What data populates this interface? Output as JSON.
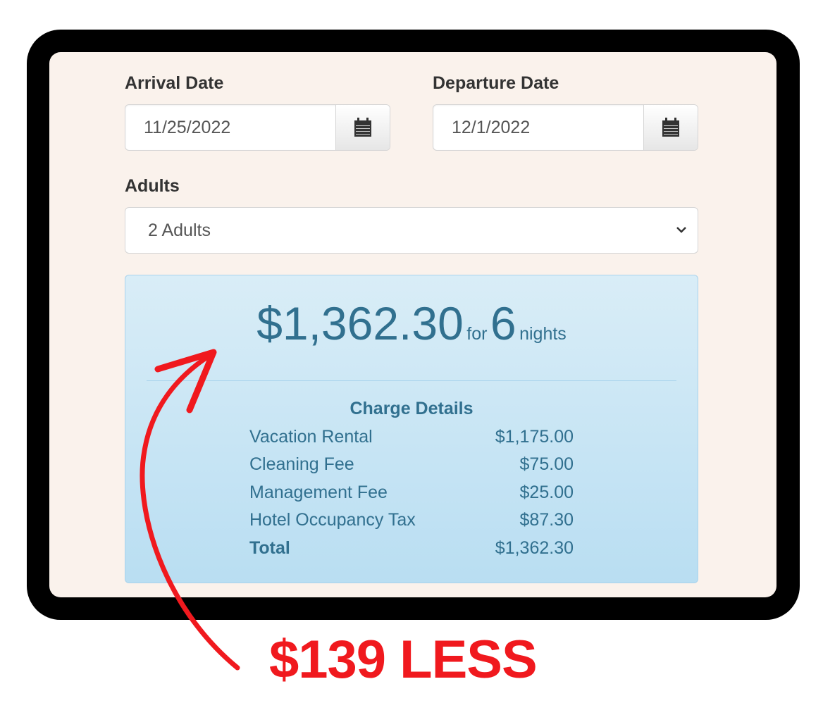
{
  "form": {
    "arrival": {
      "label": "Arrival Date",
      "value": "11/25/2022",
      "icon": "calendar-icon"
    },
    "departure": {
      "label": "Departure Date",
      "value": "12/1/2022",
      "icon": "calendar-icon"
    },
    "adults": {
      "label": "Adults",
      "value": "2 Adults",
      "icon": "chevron-down-icon"
    }
  },
  "quote": {
    "amount": "$1,362.30",
    "for_text": "for",
    "nights": "6",
    "nights_text": "nights",
    "details_title": "Charge Details",
    "rows": [
      {
        "name": "Vacation Rental",
        "amount": "$1,175.00"
      },
      {
        "name": "Cleaning Fee",
        "amount": "$75.00"
      },
      {
        "name": "Management Fee",
        "amount": "$25.00"
      },
      {
        "name": "Hotel Occupancy Tax",
        "amount": "$87.30"
      },
      {
        "name": "Total",
        "amount": "$1,362.30"
      }
    ]
  },
  "annotation": {
    "text": "$139 LESS",
    "color": "#f0191e"
  }
}
